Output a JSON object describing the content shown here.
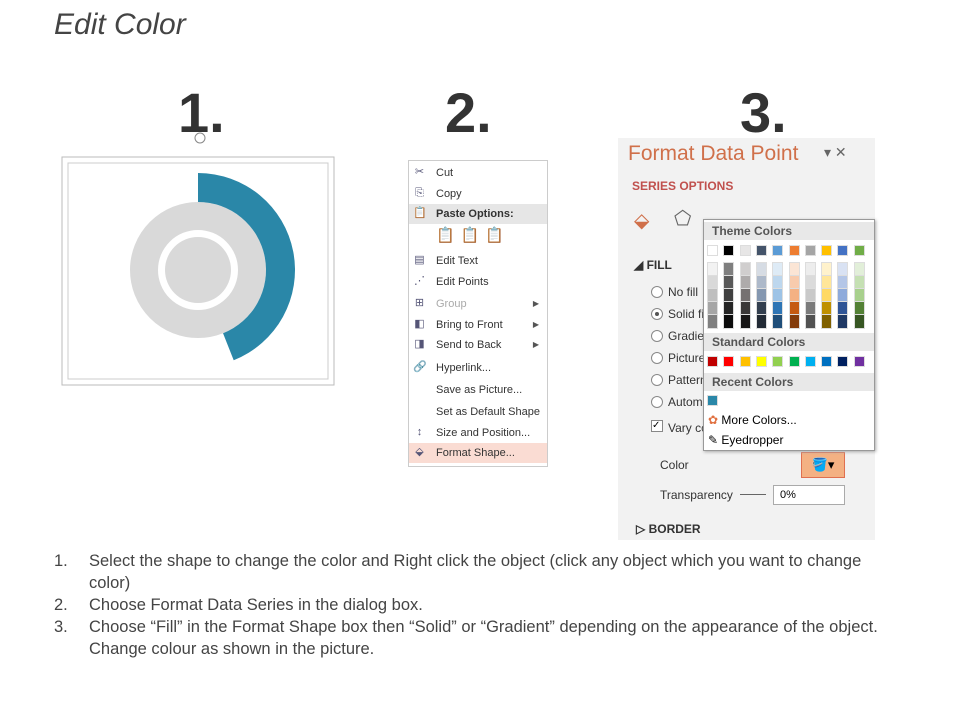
{
  "title": "Edit Color",
  "step_numbers": [
    "1.",
    "2.",
    "3."
  ],
  "donut": {
    "accent": "#2a87a8",
    "ring": "#d9d9d9",
    "arc_fraction": 0.44
  },
  "context_menu": {
    "items": [
      {
        "icon": "scissors-icon",
        "glyph": "✂",
        "label": "Cut"
      },
      {
        "icon": "copy-icon",
        "glyph": "⎘",
        "label": "Copy"
      },
      {
        "icon": "clipboard-icon",
        "glyph": "📋",
        "label": "Paste Options:"
      },
      {
        "icon": "edit-text-icon",
        "glyph": "▤",
        "label": "Edit Text"
      },
      {
        "icon": "edit-points-icon",
        "glyph": "⋰",
        "label": "Edit Points"
      },
      {
        "icon": "group-icon",
        "glyph": "⊞",
        "label": "Group"
      },
      {
        "icon": "bring-front-icon",
        "glyph": "◧",
        "label": "Bring to Front"
      },
      {
        "icon": "send-back-icon",
        "glyph": "◨",
        "label": "Send to Back"
      },
      {
        "icon": "hyperlink-icon",
        "glyph": "🔗",
        "label": "Hyperlink..."
      },
      {
        "icon": "",
        "glyph": "",
        "label": "Save as Picture..."
      },
      {
        "icon": "",
        "glyph": "",
        "label": "Set as Default Shape"
      },
      {
        "icon": "size-position-icon",
        "glyph": "↕",
        "label": "Size and Position..."
      },
      {
        "icon": "format-shape-icon",
        "glyph": "⬙",
        "label": "Format Shape..."
      }
    ]
  },
  "format_panel": {
    "title": "Format Data Point",
    "series_options": "SERIES OPTIONS",
    "fill": "FILL",
    "fill_options": [
      "No fill",
      "Solid fill",
      "Gradient fill",
      "Picture or texture fill",
      "Pattern fill",
      "Automatic"
    ],
    "selected_fill": "Solid fill",
    "vary_colors": "Vary colors by point",
    "color_label": "Color",
    "transparency_label": "Transparency",
    "transparency_value": "0%",
    "border": "BORDER"
  },
  "color_picker": {
    "theme_header": "Theme Colors",
    "theme_colors": [
      "#ffffff",
      "#000000",
      "#e7e6e6",
      "#44546a",
      "#5b9bd5",
      "#ed7d31",
      "#a5a5a5",
      "#ffc000",
      "#4472c4",
      "#70ad47"
    ],
    "theme_shades": [
      [
        "#f2f2f2",
        "#d9d9d9",
        "#bfbfbf",
        "#a6a6a6",
        "#808080"
      ],
      [
        "#7f7f7f",
        "#595959",
        "#404040",
        "#262626",
        "#0d0d0d"
      ],
      [
        "#d0cece",
        "#aeabab",
        "#757171",
        "#3a3838",
        "#171616"
      ],
      [
        "#d6dce4",
        "#adb9ca",
        "#8497b0",
        "#333f4f",
        "#222a35"
      ],
      [
        "#deebf6",
        "#bdd7ee",
        "#9dc3e6",
        "#2e75b5",
        "#1f4e79"
      ],
      [
        "#fbe5d5",
        "#f8cbad",
        "#f4b183",
        "#c55a11",
        "#843c0b"
      ],
      [
        "#ededed",
        "#dbdbdb",
        "#c9c9c9",
        "#7b7b7b",
        "#525252"
      ],
      [
        "#fff2cc",
        "#ffe699",
        "#ffd965",
        "#bf9000",
        "#7f6000"
      ],
      [
        "#d9e2f3",
        "#b4c6e7",
        "#8eaadb",
        "#2f5496",
        "#1f3864"
      ],
      [
        "#e2efd9",
        "#c5e0b3",
        "#a8d08d",
        "#538135",
        "#375623"
      ]
    ],
    "standard_header": "Standard Colors",
    "standard_colors": [
      "#c00000",
      "#ff0000",
      "#ffc000",
      "#ffff00",
      "#92d050",
      "#00b050",
      "#00b0f0",
      "#0070c0",
      "#002060",
      "#7030a0"
    ],
    "recent_header": "Recent Colors",
    "recent_colors": [
      "#2a87a8"
    ],
    "more_colors": "More Colors...",
    "eyedropper": "Eyedropper"
  },
  "instructions": [
    {
      "n": "1.",
      "text": "Select the shape to change the color and Right click the object (click any object which you want to change color)"
    },
    {
      "n": "2.",
      "text": "Choose Format Data Series in the dialog box."
    },
    {
      "n": "3.",
      "text": "Choose “Fill” in the Format Shape box then “Solid” or “Gradient” depending on the appearance of the object. Change colour as shown in the picture."
    }
  ]
}
